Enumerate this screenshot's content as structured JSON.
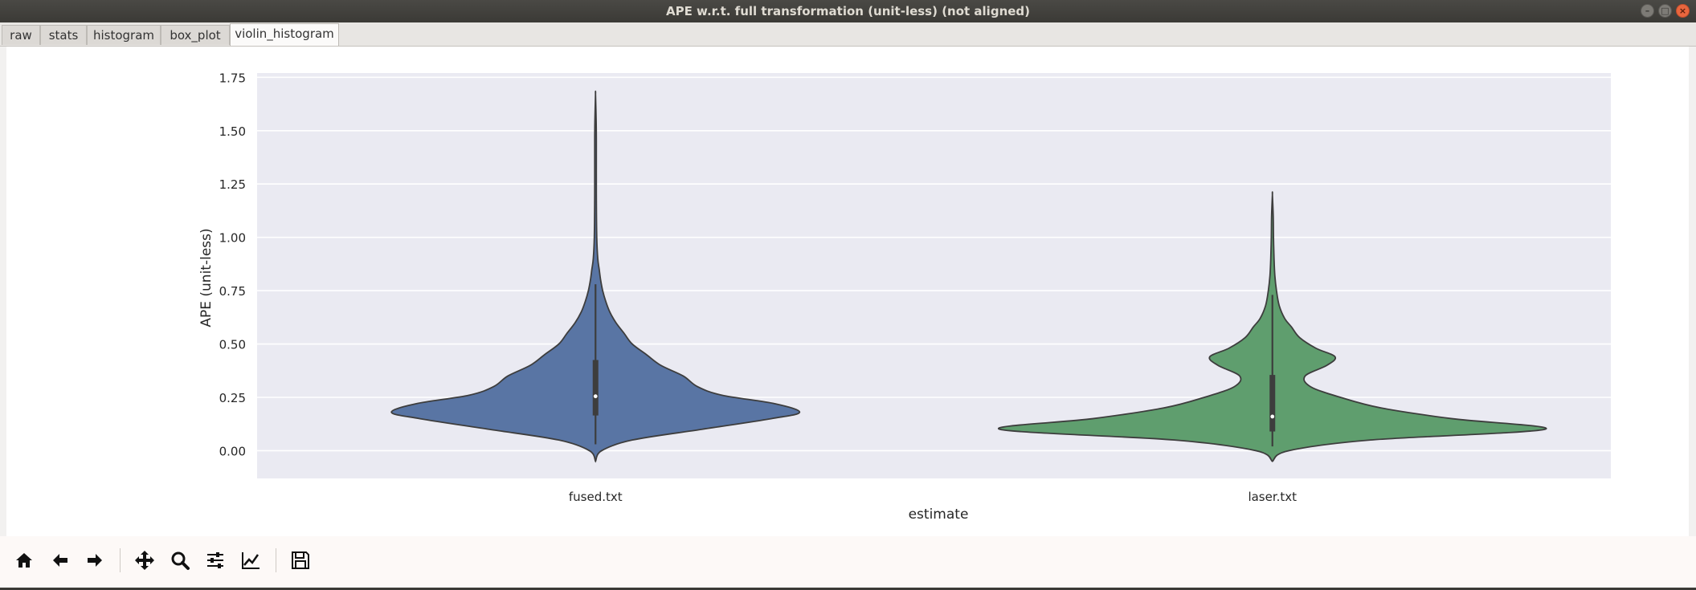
{
  "window": {
    "title": "APE w.r.t. full transformation (unit-less) (not aligned)",
    "minimize_glyph": "–",
    "maximize_glyph": "□",
    "close_glyph": "×"
  },
  "tabs": [
    {
      "label": "raw"
    },
    {
      "label": "stats"
    },
    {
      "label": "histogram"
    },
    {
      "label": "box_plot"
    },
    {
      "label": "violin_histogram",
      "active": true
    }
  ],
  "chart_data": {
    "type": "violin",
    "xlabel": "estimate",
    "ylabel": "APE (unit-less)",
    "ylim": [
      -0.13,
      1.77
    ],
    "yticks": [
      0.0,
      0.25,
      0.5,
      0.75,
      1.0,
      1.25,
      1.5,
      1.75
    ],
    "ytick_labels": [
      "0.00",
      "0.25",
      "0.50",
      "0.75",
      "1.00",
      "1.25",
      "1.50",
      "1.75"
    ],
    "grid": true,
    "background": "#eaeaf2",
    "categories": [
      "fused.txt",
      "laser.txt"
    ],
    "violins": [
      {
        "category": "fused.txt",
        "color": "#5975a4",
        "y_min": -0.05,
        "y_max": 1.67,
        "median": 0.255,
        "q1": 0.165,
        "q3": 0.425,
        "whisker_low": 0.03,
        "whisker_high": 0.78,
        "density_profile": [
          [
            -0.05,
            0.0
          ],
          [
            0.0,
            0.03
          ],
          [
            0.05,
            0.18
          ],
          [
            0.1,
            0.52
          ],
          [
            0.15,
            0.86
          ],
          [
            0.18,
            1.0
          ],
          [
            0.22,
            0.88
          ],
          [
            0.26,
            0.62
          ],
          [
            0.3,
            0.5
          ],
          [
            0.35,
            0.43
          ],
          [
            0.4,
            0.32
          ],
          [
            0.45,
            0.25
          ],
          [
            0.5,
            0.18
          ],
          [
            0.55,
            0.14
          ],
          [
            0.6,
            0.1
          ],
          [
            0.65,
            0.07
          ],
          [
            0.7,
            0.05
          ],
          [
            0.75,
            0.035
          ],
          [
            0.8,
            0.025
          ],
          [
            0.85,
            0.018
          ],
          [
            0.9,
            0.011
          ],
          [
            1.0,
            0.006
          ],
          [
            1.2,
            0.004
          ],
          [
            1.45,
            0.004
          ],
          [
            1.55,
            0.003
          ],
          [
            1.67,
            0.0
          ]
        ]
      },
      {
        "category": "laser.txt",
        "color": "#5f9e6e",
        "y_min": -0.05,
        "y_max": 1.2,
        "median": 0.16,
        "q1": 0.09,
        "q3": 0.355,
        "whisker_low": 0.02,
        "whisker_high": 0.73,
        "density_profile": [
          [
            -0.05,
            0.0
          ],
          [
            0.0,
            0.06
          ],
          [
            0.05,
            0.36
          ],
          [
            0.1,
            1.0
          ],
          [
            0.15,
            0.66
          ],
          [
            0.2,
            0.4
          ],
          [
            0.25,
            0.25
          ],
          [
            0.3,
            0.14
          ],
          [
            0.35,
            0.12
          ],
          [
            0.4,
            0.2
          ],
          [
            0.44,
            0.23
          ],
          [
            0.48,
            0.16
          ],
          [
            0.53,
            0.1
          ],
          [
            0.58,
            0.07
          ],
          [
            0.62,
            0.045
          ],
          [
            0.68,
            0.025
          ],
          [
            0.75,
            0.015
          ],
          [
            0.82,
            0.009
          ],
          [
            0.9,
            0.006
          ],
          [
            1.0,
            0.004
          ],
          [
            1.1,
            0.003
          ],
          [
            1.2,
            0.0
          ]
        ]
      }
    ]
  },
  "toolbar": {
    "tools": [
      {
        "icon": "home-icon"
      },
      {
        "icon": "back-arrow-icon"
      },
      {
        "icon": "forward-arrow-icon"
      },
      {
        "icon": "pan-icon"
      },
      {
        "icon": "zoom-icon"
      },
      {
        "icon": "configure-subplots-icon"
      },
      {
        "icon": "edit-axes-icon"
      },
      {
        "icon": "save-icon"
      }
    ]
  }
}
